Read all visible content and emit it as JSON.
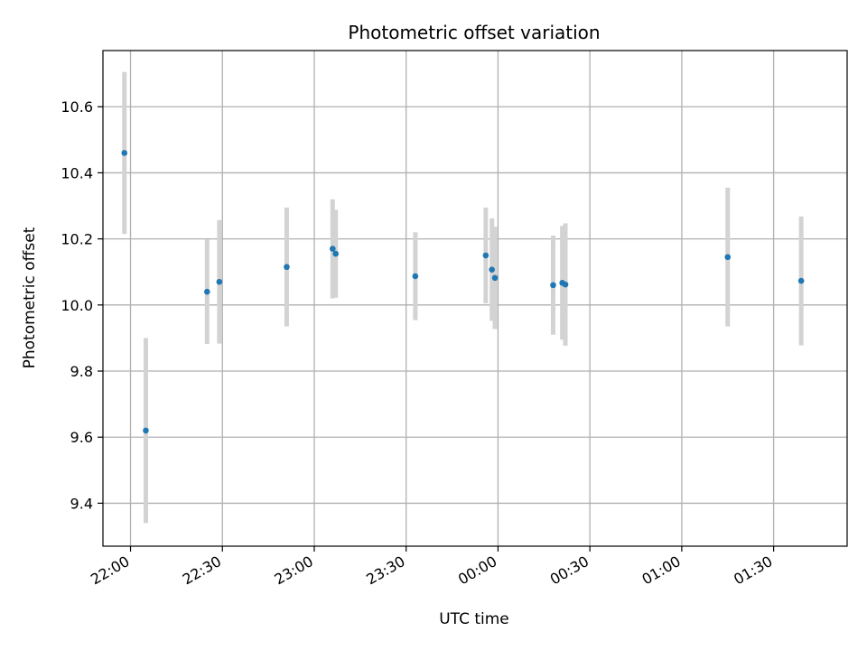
{
  "chart_data": {
    "type": "scatter",
    "title": "Photometric offset variation",
    "xlabel": "UTC time",
    "ylabel": "Photometric offset",
    "x_axis_type": "time",
    "xlim": [
      "21:51",
      "01:54"
    ],
    "ylim": [
      9.27,
      10.77
    ],
    "x_ticks": [
      "22:00",
      "22:30",
      "23:00",
      "23:30",
      "00:00",
      "00:30",
      "01:00",
      "01:30"
    ],
    "y_ticks": [
      9.4,
      9.6,
      9.8,
      10.0,
      10.2,
      10.4,
      10.6
    ],
    "y_tick_labels": [
      "9.4",
      "9.6",
      "9.8",
      "10.0",
      "10.2",
      "10.4",
      "10.6"
    ],
    "x_tick_rotation_deg": 30,
    "grid": true,
    "legend": "none",
    "colors": {
      "point": "#1f77b4",
      "errorbar": "#d3d3d3",
      "grid": "#b0b0b0"
    },
    "points": [
      {
        "x": "21:58",
        "y": 10.46,
        "yerr": 0.245
      },
      {
        "x": "22:05",
        "y": 9.62,
        "yerr": 0.28
      },
      {
        "x": "22:25",
        "y": 10.04,
        "yerr": 0.158
      },
      {
        "x": "22:29",
        "y": 10.07,
        "yerr": 0.187
      },
      {
        "x": "22:51",
        "y": 10.115,
        "yerr": 0.18
      },
      {
        "x": "23:06",
        "y": 10.17,
        "yerr": 0.15
      },
      {
        "x": "23:07",
        "y": 10.155,
        "yerr": 0.133
      },
      {
        "x": "23:33",
        "y": 10.087,
        "yerr": 0.133
      },
      {
        "x": "23:56",
        "y": 10.15,
        "yerr": 0.145
      },
      {
        "x": "23:58",
        "y": 10.107,
        "yerr": 0.155
      },
      {
        "x": "23:59",
        "y": 10.082,
        "yerr": 0.155
      },
      {
        "x": "00:18",
        "y": 10.06,
        "yerr": 0.15
      },
      {
        "x": "00:21",
        "y": 10.067,
        "yerr": 0.172
      },
      {
        "x": "00:22",
        "y": 10.062,
        "yerr": 0.185
      },
      {
        "x": "01:15",
        "y": 10.145,
        "yerr": 0.21
      },
      {
        "x": "01:39",
        "y": 10.073,
        "yerr": 0.195
      }
    ]
  }
}
